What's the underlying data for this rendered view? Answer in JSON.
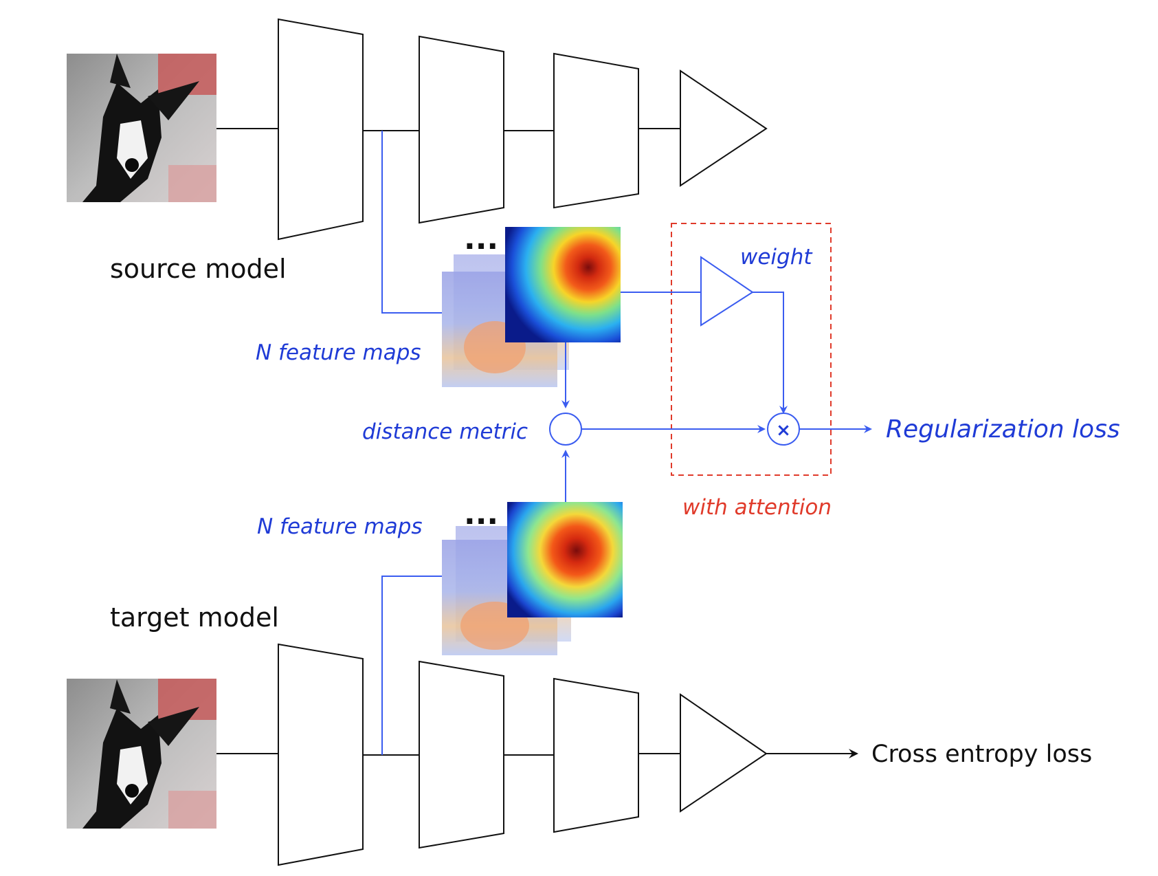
{
  "labels": {
    "source_model": "source model",
    "target_model": "target model",
    "n_feature_maps_source": "N feature maps",
    "n_feature_maps_target": "N feature maps",
    "ellipsis_source": "...",
    "ellipsis_target": "...",
    "weight": "weight",
    "distance_metric": "distance metric",
    "multiply_symbol": "×",
    "regularization_loss": "Regularization loss",
    "with_attention": "with attention",
    "cross_entropy_loss": "Cross entropy loss"
  },
  "colors": {
    "blue": "#1f3bd6",
    "line_blue": "#3a5cf0",
    "red": "#e03a2a",
    "black": "#111111"
  },
  "icons": {
    "input_image": "dog-photo-icon",
    "layer_block": "trapezoid-layer-shape",
    "classifier_head": "triangle-head-shape",
    "feature_map": "heatmap-icon"
  }
}
